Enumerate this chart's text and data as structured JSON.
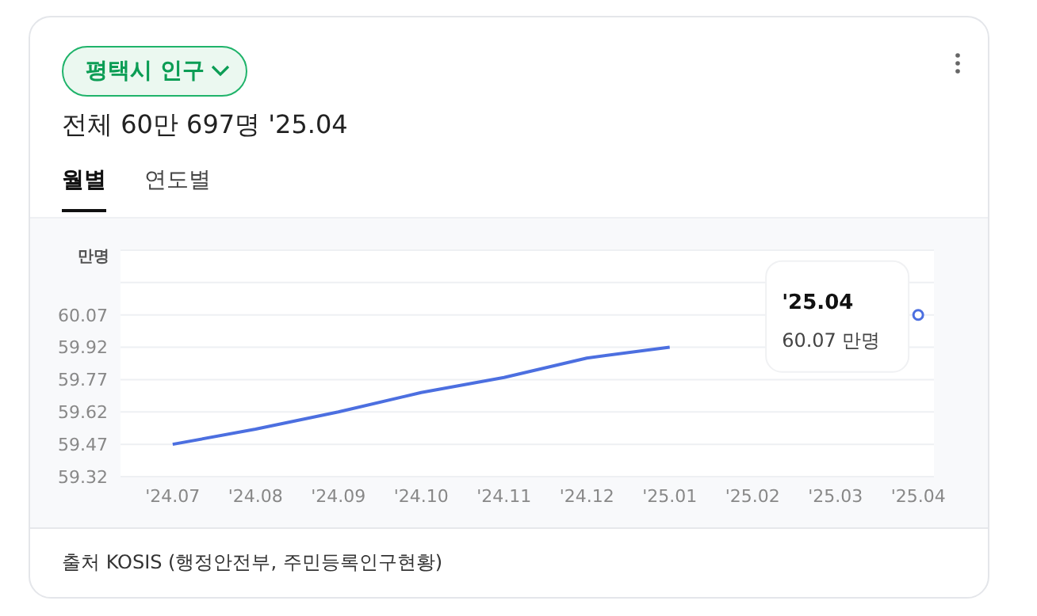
{
  "chart_data": {
    "type": "line",
    "title": "평택시 인구",
    "subtitle": "전체 60만 697명 '25.04",
    "ylabel": "만명",
    "categories": [
      "'24.07",
      "'24.08",
      "'24.09",
      "'24.10",
      "'24.11",
      "'24.12",
      "'25.01",
      "'25.02",
      "'25.03",
      "'25.04"
    ],
    "series": [
      {
        "color": "#4c6fe0",
        "values": [
          59.47,
          59.54,
          59.62,
          59.71,
          59.78,
          59.87,
          59.92,
          null,
          null,
          60.07
        ]
      }
    ],
    "ylim": [
      59.32,
      60.37
    ],
    "yticks": [
      59.32,
      59.47,
      59.62,
      59.77,
      59.92,
      60.07,
      {
        "value": 60.22,
        "label": null
      }
    ],
    "grid": "y",
    "annotations": [
      "월별",
      "연도별",
      "출처 KOSIS (행정안전부, 주민등록인구현황)",
      "'25.04",
      "60.07 만명"
    ]
  }
}
